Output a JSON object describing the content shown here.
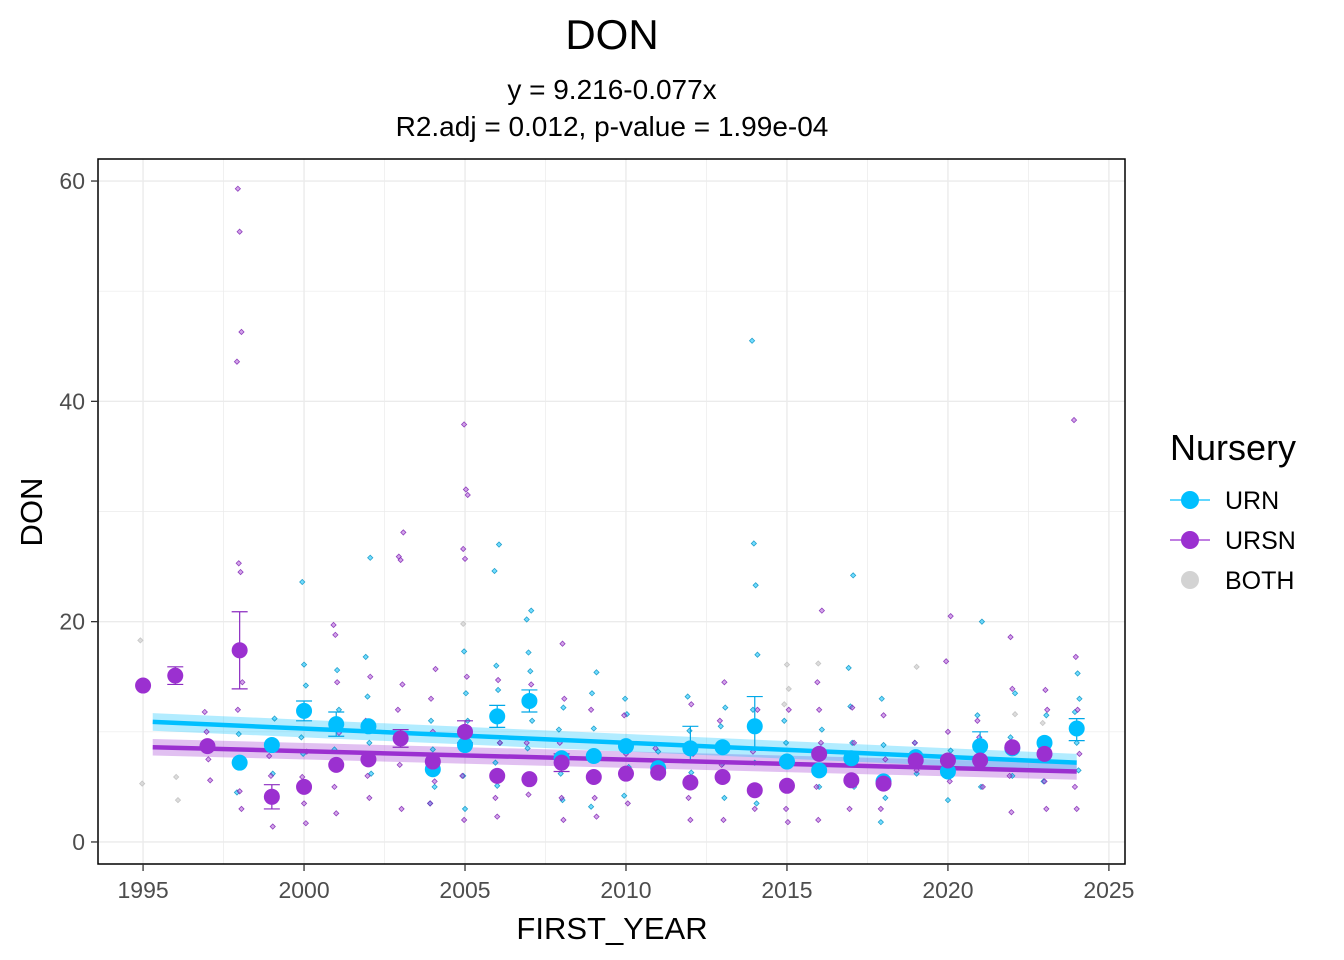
{
  "chart_data": {
    "type": "scatter",
    "title": "DON",
    "subtitle_line1": "y = 9.216-0.077x",
    "subtitle_line2": "R2.adj = 0.012, p-value = 1.99e-04",
    "xlabel": "FIRST_YEAR",
    "ylabel": "DON",
    "xlim": [
      1993.6,
      2025.5
    ],
    "ylim": [
      -2,
      62
    ],
    "x_ticks": [
      1995,
      2000,
      2005,
      2010,
      2015,
      2020,
      2025
    ],
    "x_tick_labels": [
      "1995",
      "2000",
      "2005",
      "2010",
      "2015",
      "2020",
      "2025"
    ],
    "y_ticks": [
      0,
      20,
      40,
      60
    ],
    "y_tick_labels": [
      "0",
      "20",
      "40",
      "60"
    ],
    "grid": true,
    "legend": {
      "title": "Nursery",
      "position": "right",
      "entries": [
        {
          "label": "URN",
          "color": "#00BFFF"
        },
        {
          "label": "URSN",
          "color": "#9B30D0"
        },
        {
          "label": "BOTH",
          "color": "#D3D3D3"
        }
      ]
    },
    "colors": {
      "URN": "#00BFFF",
      "URSN": "#9B30D0",
      "BOTH": "#D3D3D3"
    },
    "means": {
      "URN": [
        [
          1998,
          7.2
        ],
        [
          1999,
          8.8
        ],
        [
          2000,
          11.9
        ],
        [
          2001,
          10.7
        ],
        [
          2002,
          10.5
        ],
        [
          2004,
          6.6
        ],
        [
          2005,
          8.8
        ],
        [
          2006,
          11.4
        ],
        [
          2007,
          12.8
        ],
        [
          2008,
          7.6
        ],
        [
          2009,
          7.8
        ],
        [
          2010,
          8.7
        ],
        [
          2011,
          6.7
        ],
        [
          2012,
          8.5
        ],
        [
          2013,
          8.6
        ],
        [
          2014,
          10.5
        ],
        [
          2015,
          7.3
        ],
        [
          2016,
          6.5
        ],
        [
          2017,
          7.6
        ],
        [
          2018,
          5.5
        ],
        [
          2019,
          7.7
        ],
        [
          2020,
          6.4
        ],
        [
          2021,
          8.7
        ],
        [
          2022,
          8.5
        ],
        [
          2023,
          9.0
        ],
        [
          2024,
          10.3
        ]
      ],
      "URSN": [
        [
          1995,
          14.2
        ],
        [
          1996,
          15.1
        ],
        [
          1997,
          8.7
        ],
        [
          1998,
          17.4
        ],
        [
          1999,
          4.1
        ],
        [
          2000,
          5.0
        ],
        [
          2001,
          7.0
        ],
        [
          2002,
          7.5
        ],
        [
          2003,
          9.4
        ],
        [
          2004,
          7.3
        ],
        [
          2005,
          10.0
        ],
        [
          2006,
          6.0
        ],
        [
          2007,
          5.7
        ],
        [
          2008,
          7.2
        ],
        [
          2009,
          5.9
        ],
        [
          2010,
          6.2
        ],
        [
          2011,
          6.3
        ],
        [
          2012,
          5.4
        ],
        [
          2013,
          5.9
        ],
        [
          2014,
          4.7
        ],
        [
          2015,
          5.1
        ],
        [
          2016,
          8.0
        ],
        [
          2017,
          5.6
        ],
        [
          2018,
          5.3
        ],
        [
          2019,
          7.4
        ],
        [
          2020,
          7.4
        ],
        [
          2021,
          7.4
        ],
        [
          2022,
          8.6
        ],
        [
          2023,
          8.0
        ]
      ]
    },
    "error_bars": {
      "URN": [
        [
          2000,
          11.0,
          12.8
        ],
        [
          2001,
          9.6,
          11.8
        ],
        [
          2006,
          10.4,
          12.4
        ],
        [
          2007,
          11.8,
          13.8
        ],
        [
          2012,
          7.2,
          10.5
        ],
        [
          2014,
          8.6,
          13.2
        ],
        [
          2021,
          7.5,
          10.0
        ],
        [
          2024,
          9.2,
          11.2
        ]
      ],
      "URSN": [
        [
          1996,
          14.3,
          15.9
        ],
        [
          1998,
          13.9,
          20.9
        ],
        [
          1999,
          3.0,
          5.2
        ],
        [
          2003,
          8.6,
          10.2
        ],
        [
          2005,
          9.0,
          11.0
        ],
        [
          2008,
          6.4,
          8.0
        ]
      ]
    },
    "raw_points": {
      "URN": [
        [
          1998,
          4.5
        ],
        [
          1998,
          9.8
        ],
        [
          1999,
          6.2
        ],
        [
          1999,
          11.2
        ],
        [
          2000,
          23.6
        ],
        [
          2000,
          16.1
        ],
        [
          2000,
          14.2
        ],
        [
          2000,
          9.5
        ],
        [
          2000,
          8.0
        ],
        [
          2001,
          15.6
        ],
        [
          2001,
          12.0
        ],
        [
          2001,
          8.4
        ],
        [
          2001,
          6.8
        ],
        [
          2002,
          25.8
        ],
        [
          2002,
          16.8
        ],
        [
          2002,
          13.2
        ],
        [
          2002,
          9.0
        ],
        [
          2002,
          6.2
        ],
        [
          2004,
          11.0
        ],
        [
          2004,
          8.4
        ],
        [
          2004,
          5.0
        ],
        [
          2004,
          3.5
        ],
        [
          2005,
          17.3
        ],
        [
          2005,
          13.5
        ],
        [
          2005,
          11.0
        ],
        [
          2005,
          6.0
        ],
        [
          2005,
          3.0
        ],
        [
          2006,
          27.0
        ],
        [
          2006,
          24.6
        ],
        [
          2006,
          16.0
        ],
        [
          2006,
          13.8
        ],
        [
          2006,
          9.0
        ],
        [
          2006,
          7.2
        ],
        [
          2006,
          5.1
        ],
        [
          2007,
          21.0
        ],
        [
          2007,
          20.2
        ],
        [
          2007,
          17.2
        ],
        [
          2007,
          15.5
        ],
        [
          2007,
          11.0
        ],
        [
          2007,
          8.5
        ],
        [
          2007,
          6.0
        ],
        [
          2008,
          12.2
        ],
        [
          2008,
          10.2
        ],
        [
          2008,
          6.2
        ],
        [
          2008,
          3.8
        ],
        [
          2009,
          15.4
        ],
        [
          2009,
          13.5
        ],
        [
          2009,
          10.3
        ],
        [
          2009,
          5.8
        ],
        [
          2009,
          3.2
        ],
        [
          2010,
          13.0
        ],
        [
          2010,
          11.6
        ],
        [
          2010,
          6.8
        ],
        [
          2010,
          4.2
        ],
        [
          2011,
          8.2
        ],
        [
          2011,
          5.8
        ],
        [
          2012,
          13.2
        ],
        [
          2012,
          10.1
        ],
        [
          2012,
          6.3
        ],
        [
          2013,
          12.2
        ],
        [
          2013,
          10.5
        ],
        [
          2013,
          7.1
        ],
        [
          2013,
          4.0
        ],
        [
          2014,
          45.5
        ],
        [
          2014,
          27.1
        ],
        [
          2014,
          23.3
        ],
        [
          2014,
          17.0
        ],
        [
          2014,
          12.0
        ],
        [
          2014,
          7.2
        ],
        [
          2014,
          3.5
        ],
        [
          2015,
          11.0
        ],
        [
          2015,
          9.0
        ],
        [
          2015,
          5.2
        ],
        [
          2016,
          10.2
        ],
        [
          2016,
          8.1
        ],
        [
          2016,
          5.0
        ],
        [
          2017,
          24.2
        ],
        [
          2017,
          15.8
        ],
        [
          2017,
          12.3
        ],
        [
          2017,
          9.0
        ],
        [
          2017,
          5.0
        ],
        [
          2018,
          13.0
        ],
        [
          2018,
          8.8
        ],
        [
          2018,
          4.0
        ],
        [
          2018,
          1.8
        ],
        [
          2019,
          9.0
        ],
        [
          2019,
          6.2
        ],
        [
          2020,
          8.3
        ],
        [
          2020,
          6.0
        ],
        [
          2020,
          3.8
        ],
        [
          2021,
          20.0
        ],
        [
          2021,
          11.5
        ],
        [
          2021,
          8.0
        ],
        [
          2021,
          5.0
        ],
        [
          2022,
          13.5
        ],
        [
          2022,
          9.5
        ],
        [
          2022,
          6.0
        ],
        [
          2023,
          11.5
        ],
        [
          2023,
          8.0
        ],
        [
          2023,
          5.5
        ],
        [
          2024,
          15.3
        ],
        [
          2024,
          13.0
        ],
        [
          2024,
          11.8
        ],
        [
          2024,
          9.0
        ],
        [
          2024,
          6.5
        ]
      ],
      "URSN": [
        [
          1997,
          11.8
        ],
        [
          1997,
          10.0
        ],
        [
          1997,
          7.5
        ],
        [
          1997,
          5.6
        ],
        [
          1998,
          59.3
        ],
        [
          1998,
          55.4
        ],
        [
          1998,
          46.3
        ],
        [
          1998,
          43.6
        ],
        [
          1998,
          25.3
        ],
        [
          1998,
          24.5
        ],
        [
          1998,
          14.5
        ],
        [
          1998,
          12.0
        ],
        [
          1998,
          4.6
        ],
        [
          1998,
          3.0
        ],
        [
          1999,
          7.8
        ],
        [
          1999,
          6.0
        ],
        [
          1999,
          1.4
        ],
        [
          2000,
          8.2
        ],
        [
          2000,
          5.9
        ],
        [
          2000,
          3.5
        ],
        [
          2000,
          1.7
        ],
        [
          2001,
          19.7
        ],
        [
          2001,
          18.8
        ],
        [
          2001,
          14.5
        ],
        [
          2001,
          9.9
        ],
        [
          2001,
          5.0
        ],
        [
          2001,
          2.6
        ],
        [
          2002,
          15.0
        ],
        [
          2002,
          11.0
        ],
        [
          2002,
          6.0
        ],
        [
          2002,
          4.0
        ],
        [
          2003,
          28.1
        ],
        [
          2003,
          25.9
        ],
        [
          2003,
          25.6
        ],
        [
          2003,
          14.3
        ],
        [
          2003,
          12.0
        ],
        [
          2003,
          7.0
        ],
        [
          2003,
          3.0
        ],
        [
          2004,
          15.7
        ],
        [
          2004,
          13.0
        ],
        [
          2004,
          10.0
        ],
        [
          2004,
          5.5
        ],
        [
          2004,
          3.5
        ],
        [
          2005,
          37.9
        ],
        [
          2005,
          32.0
        ],
        [
          2005,
          31.5
        ],
        [
          2005,
          26.6
        ],
        [
          2005,
          25.7
        ],
        [
          2005,
          15.0
        ],
        [
          2005,
          6.0
        ],
        [
          2005,
          2.0
        ],
        [
          2006,
          14.7
        ],
        [
          2006,
          9.0
        ],
        [
          2006,
          4.0
        ],
        [
          2006,
          2.3
        ],
        [
          2007,
          14.3
        ],
        [
          2007,
          9.0
        ],
        [
          2007,
          4.3
        ],
        [
          2008,
          18.0
        ],
        [
          2008,
          13.0
        ],
        [
          2008,
          9.0
        ],
        [
          2008,
          4.0
        ],
        [
          2008,
          2.0
        ],
        [
          2009,
          12.0
        ],
        [
          2009,
          8.0
        ],
        [
          2009,
          4.0
        ],
        [
          2009,
          2.3
        ],
        [
          2010,
          11.5
        ],
        [
          2010,
          8.0
        ],
        [
          2010,
          3.5
        ],
        [
          2011,
          8.5
        ],
        [
          2011,
          6.0
        ],
        [
          2012,
          12.5
        ],
        [
          2012,
          8.0
        ],
        [
          2012,
          4.0
        ],
        [
          2012,
          2.0
        ],
        [
          2013,
          14.5
        ],
        [
          2013,
          11.0
        ],
        [
          2013,
          7.0
        ],
        [
          2013,
          2.0
        ],
        [
          2014,
          12.0
        ],
        [
          2014,
          8.2
        ],
        [
          2014,
          3.0
        ],
        [
          2015,
          12.0
        ],
        [
          2015,
          7.0
        ],
        [
          2015,
          3.0
        ],
        [
          2015,
          1.8
        ],
        [
          2016,
          21.0
        ],
        [
          2016,
          14.5
        ],
        [
          2016,
          12.0
        ],
        [
          2016,
          9.0
        ],
        [
          2016,
          5.0
        ],
        [
          2016,
          2.0
        ],
        [
          2017,
          12.2
        ],
        [
          2017,
          9.0
        ],
        [
          2017,
          3.0
        ],
        [
          2018,
          11.5
        ],
        [
          2018,
          7.5
        ],
        [
          2018,
          3.0
        ],
        [
          2019,
          9.0
        ],
        [
          2019,
          6.5
        ],
        [
          2020,
          20.5
        ],
        [
          2020,
          16.4
        ],
        [
          2020,
          10.0
        ],
        [
          2020,
          5.5
        ],
        [
          2021,
          11.0
        ],
        [
          2021,
          9.5
        ],
        [
          2021,
          6.8
        ],
        [
          2021,
          5.0
        ],
        [
          2022,
          18.6
        ],
        [
          2022,
          13.9
        ],
        [
          2022,
          9.0
        ],
        [
          2022,
          6.0
        ],
        [
          2022,
          2.7
        ],
        [
          2023,
          13.8
        ],
        [
          2023,
          12.0
        ],
        [
          2023,
          9.0
        ],
        [
          2023,
          5.5
        ],
        [
          2023,
          3.0
        ],
        [
          2024,
          38.3
        ],
        [
          2024,
          16.8
        ],
        [
          2024,
          12.0
        ],
        [
          2024,
          8.0
        ],
        [
          2024,
          5.0
        ],
        [
          2024,
          3.0
        ]
      ],
      "BOTH": [
        [
          1995,
          18.3
        ],
        [
          1995,
          5.3
        ],
        [
          1996,
          5.9
        ],
        [
          1996,
          3.8
        ],
        [
          2005,
          19.8
        ],
        [
          2015,
          16.1
        ],
        [
          2015,
          13.9
        ],
        [
          2015,
          12.5
        ],
        [
          2016,
          16.2
        ],
        [
          2019,
          15.9
        ],
        [
          2022,
          11.6
        ],
        [
          2023,
          10.8
        ]
      ]
    },
    "trend": {
      "URN": {
        "x": [
          1995.3,
          2024
        ],
        "y": [
          10.9,
          7.2
        ],
        "band_halfwidth": 0.8
      },
      "URSN": {
        "x": [
          1995.3,
          2024
        ],
        "y": [
          8.6,
          6.4
        ],
        "band_halfwidth": 0.75
      }
    }
  }
}
